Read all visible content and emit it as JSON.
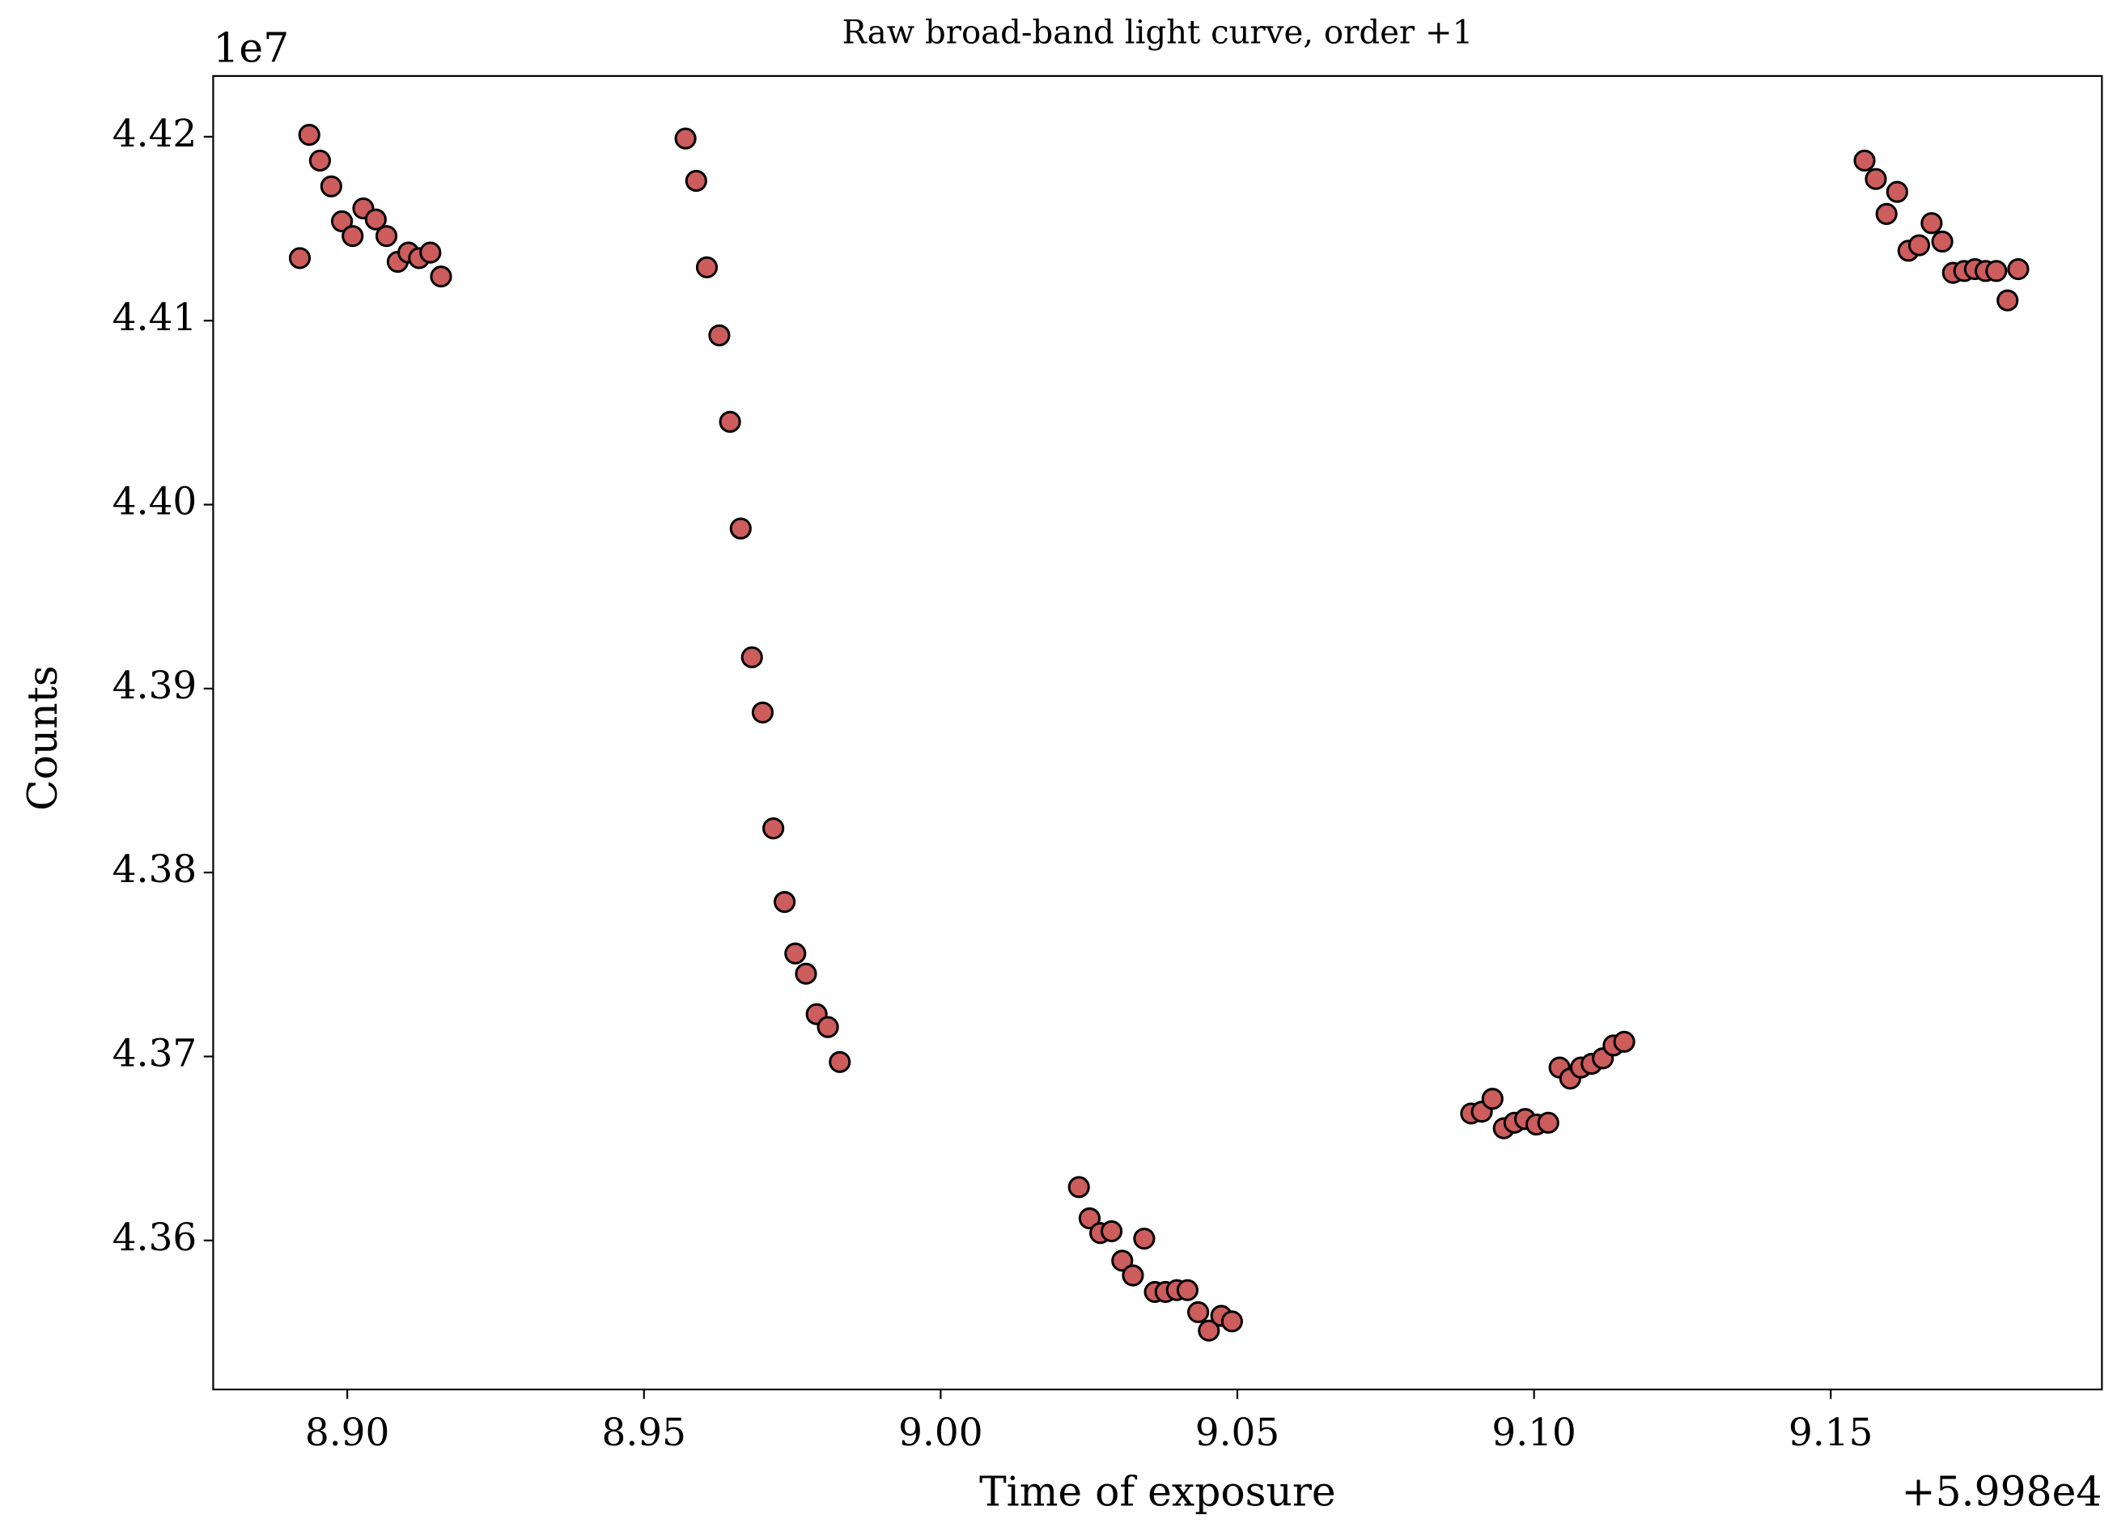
{
  "chart_data": {
    "type": "scatter",
    "title": "Raw broad-band light curve, order +1",
    "x_label": "Time of exposure",
    "y_label": "Counts",
    "x_offset_label": "+5.998e4",
    "y_scale_label": "1e7",
    "xlim": [
      8.8774,
      9.1957
    ],
    "ylim": [
      4.3519,
      4.4233
    ],
    "xticks": [
      {
        "value": 8.9,
        "label": "8.90"
      },
      {
        "value": 8.95,
        "label": "8.95"
      },
      {
        "value": 9.0,
        "label": "9.00"
      },
      {
        "value": 9.05,
        "label": "9.05"
      },
      {
        "value": 9.1,
        "label": "9.10"
      },
      {
        "value": 9.15,
        "label": "9.15"
      }
    ],
    "yticks": [
      {
        "value": 4.36,
        "label": "4.36"
      },
      {
        "value": 4.37,
        "label": "4.37"
      },
      {
        "value": 4.38,
        "label": "4.38"
      },
      {
        "value": 4.39,
        "label": "4.39"
      },
      {
        "value": 4.4,
        "label": "4.40"
      },
      {
        "value": 4.41,
        "label": "4.41"
      },
      {
        "value": 4.42,
        "label": "4.42"
      }
    ],
    "grid": false,
    "series": [
      {
        "color": "#cd5c5c",
        "edgecolor": "#000000",
        "x": [
          8.892,
          8.8936,
          8.8954,
          8.8973,
          8.8991,
          8.9009,
          8.9027,
          8.9048,
          8.9066,
          8.9085,
          8.9103,
          8.9121,
          8.914,
          8.9158,
          8.957,
          8.9588,
          8.9606,
          8.9627,
          8.9645,
          8.9663,
          8.9682,
          8.97,
          8.9718,
          8.9737,
          8.9755,
          8.9773,
          8.9791,
          8.981,
          8.983,
          9.0233,
          9.0251,
          9.0269,
          9.0288,
          9.0306,
          9.0324,
          9.0343,
          9.0361,
          9.0379,
          9.0398,
          9.0416,
          9.0434,
          9.0452,
          9.0473,
          9.0491,
          9.0894,
          9.0912,
          9.093,
          9.0949,
          9.0967,
          9.0985,
          9.1004,
          9.1024,
          9.1043,
          9.1061,
          9.1079,
          9.1097,
          9.1116,
          9.1134,
          9.1152,
          9.1557,
          9.1576,
          9.1594,
          9.1612,
          9.1631,
          9.1649,
          9.167,
          9.1688,
          9.1706,
          9.1725,
          9.1743,
          9.1761,
          9.1779,
          9.1798,
          9.1816
        ],
        "values": [
          4.4134,
          4.4201,
          4.4187,
          4.4173,
          4.4154,
          4.4146,
          4.4161,
          4.4155,
          4.4146,
          4.4132,
          4.4137,
          4.4134,
          4.4137,
          4.4124,
          4.4199,
          4.4176,
          4.4129,
          4.4092,
          4.4045,
          4.3987,
          4.3917,
          4.3887,
          4.3824,
          4.3784,
          4.3756,
          4.3745,
          4.3723,
          4.3716,
          4.3697,
          4.3629,
          4.3612,
          4.3604,
          4.3605,
          4.3589,
          4.3581,
          4.3601,
          4.3572,
          4.3572,
          4.3573,
          4.3573,
          4.3561,
          4.3551,
          4.3559,
          4.3556,
          4.3669,
          4.367,
          4.3677,
          4.3661,
          4.3664,
          4.3666,
          4.3663,
          4.3664,
          4.3694,
          4.3688,
          4.3694,
          4.3696,
          4.3699,
          4.3706,
          4.3708,
          4.4187,
          4.4177,
          4.4158,
          4.417,
          4.4138,
          4.4141,
          4.4153,
          4.4143,
          4.4126,
          4.4127,
          4.4128,
          4.4127,
          4.4127,
          4.4111,
          4.4128
        ]
      }
    ]
  }
}
